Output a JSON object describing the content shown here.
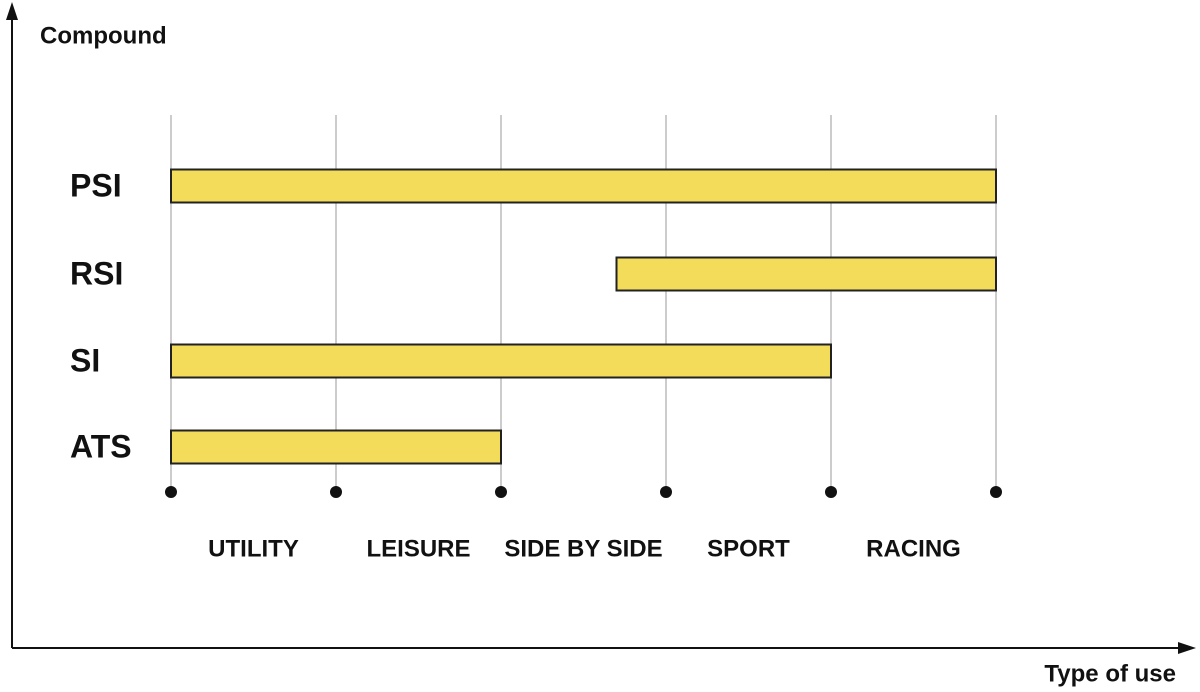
{
  "chart_data": {
    "type": "range_bar",
    "y_label": "Compound",
    "x_label": "Type of use",
    "categories": [
      "PSI",
      "RSI",
      "SI",
      "ATS"
    ],
    "ranges": [
      [
        0,
        5
      ],
      [
        2.7,
        5
      ],
      [
        0,
        4
      ],
      [
        0,
        2
      ]
    ],
    "color": "#f3dc5a",
    "x_categories": [
      "UTILITY",
      "LEISURE",
      "SIDE BY SIDE",
      "SPORT",
      "RACING"
    ],
    "xlim": [
      0,
      5
    ],
    "xticks": [
      0,
      1,
      2,
      3,
      4,
      5
    ],
    "grid": true
  }
}
